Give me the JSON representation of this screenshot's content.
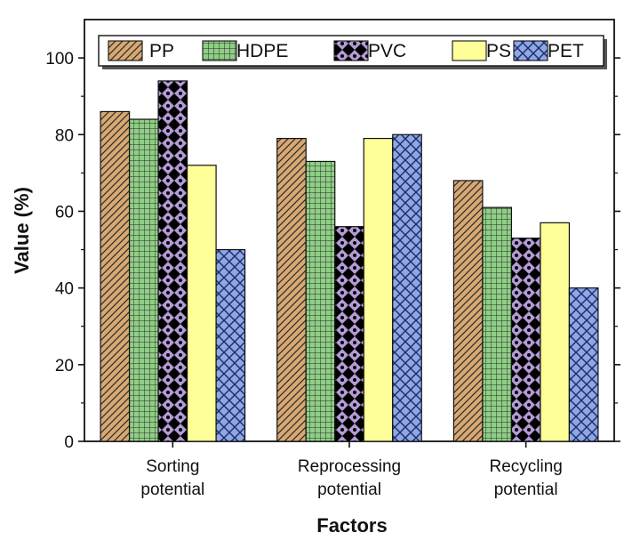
{
  "chart_data": {
    "type": "bar",
    "title": "",
    "xlabel": "Factors",
    "ylabel": "Value (%)",
    "ylim": [
      0,
      110
    ],
    "yticks": [
      0,
      20,
      40,
      60,
      80,
      100
    ],
    "y_tick_labels": [
      "0",
      "20",
      "40",
      "60",
      "80",
      "100"
    ],
    "categories": [
      [
        "Sorting",
        "potential"
      ],
      [
        "Reprocessing",
        "potential"
      ],
      [
        "Recycling",
        "potential"
      ]
    ],
    "series": [
      {
        "name": "PP",
        "values": [
          86,
          79,
          68
        ],
        "color": "#d8a873",
        "pattern": "diagonal"
      },
      {
        "name": "HDPE",
        "values": [
          84,
          73,
          61
        ],
        "color": "#8fcf85",
        "pattern": "grid"
      },
      {
        "name": "PVC",
        "values": [
          94,
          56,
          53
        ],
        "color": "#b39bd6",
        "pattern": "diamond-dots"
      },
      {
        "name": "PS",
        "values": [
          72,
          79,
          57
        ],
        "color": "#ffff99",
        "pattern": "none"
      },
      {
        "name": "PET",
        "values": [
          50,
          80,
          40
        ],
        "color": "#8fa7e6",
        "pattern": "crosshatch"
      }
    ],
    "legend": {
      "position": "top",
      "entries": [
        "PP",
        "HDPE",
        "PVC",
        "PS",
        "PET"
      ]
    },
    "grid": false
  }
}
